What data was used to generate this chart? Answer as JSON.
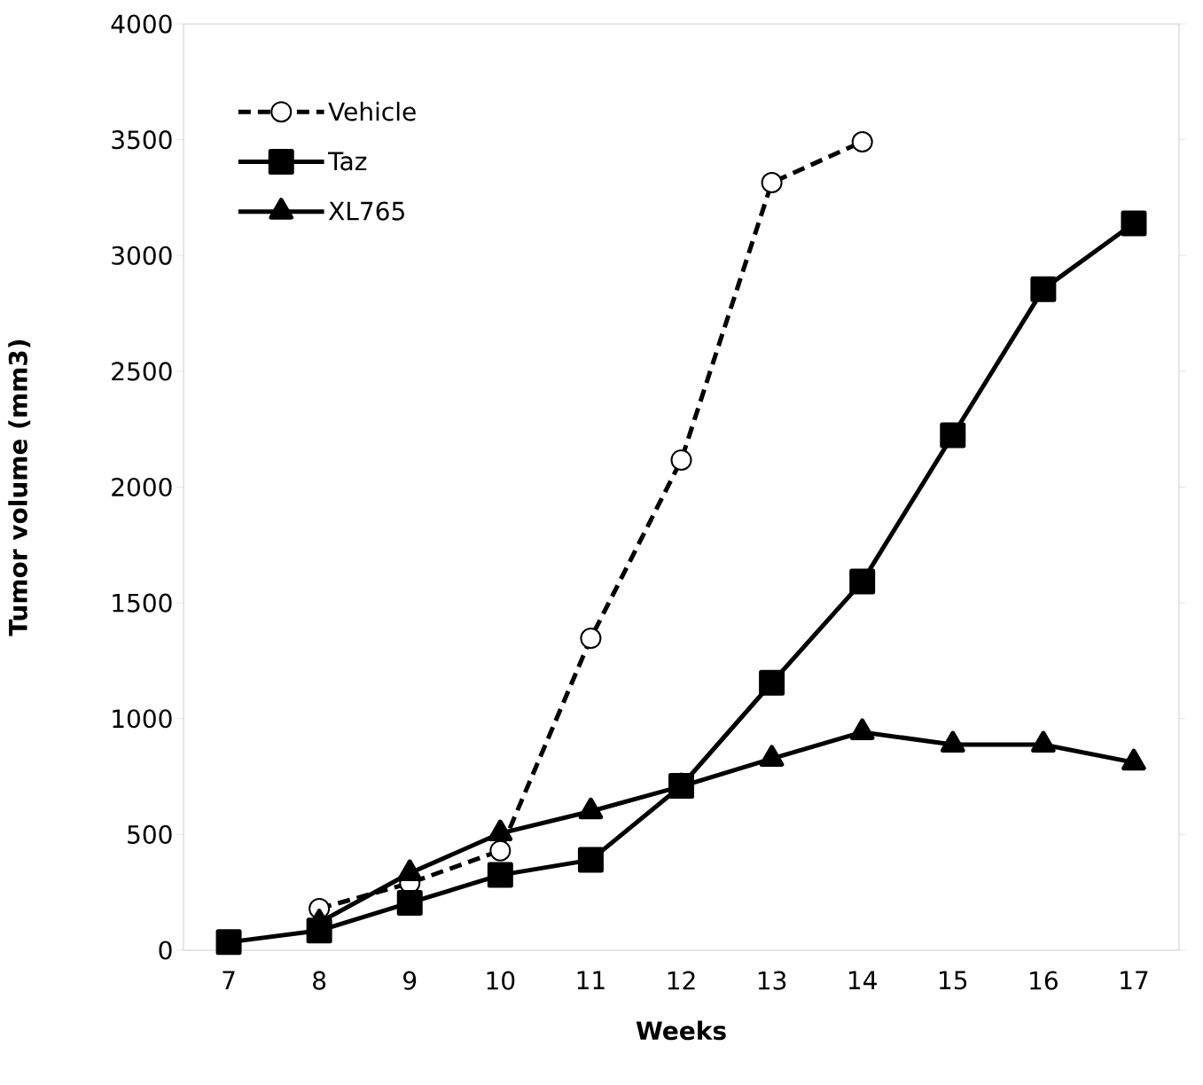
{
  "chart_data": {
    "type": "line",
    "xlabel": "Weeks",
    "ylabel": "Tumor volume (mm3)",
    "categories": [
      "7",
      "8",
      "9",
      "10",
      "11",
      "12",
      "13",
      "14",
      "15",
      "16",
      "17"
    ],
    "series": [
      {
        "name": "Vehicle",
        "color": "#000000",
        "marker": "circle",
        "line_style": "dashed",
        "values": [
          null,
          180,
          290,
          430,
          1347,
          2117,
          3315,
          3491,
          null,
          null,
          null
        ]
      },
      {
        "name": "Taz",
        "color": "#000000",
        "marker": "square",
        "line_style": "solid",
        "values": [
          35,
          85,
          205,
          325,
          390,
          710,
          1155,
          1592,
          2224,
          2855,
          3139
        ]
      },
      {
        "name": "XL765",
        "color": "#000000",
        "marker": "triangle",
        "line_style": "solid",
        "values": [
          null,
          120,
          333,
          505,
          600,
          708,
          827,
          942,
          888,
          888,
          811
        ]
      }
    ],
    "ylim": [
      0,
      4000
    ],
    "yticks": [
      0,
      500,
      1000,
      1500,
      2000,
      2500,
      3000,
      3500,
      4000
    ],
    "grid": false,
    "legend": "top left"
  }
}
